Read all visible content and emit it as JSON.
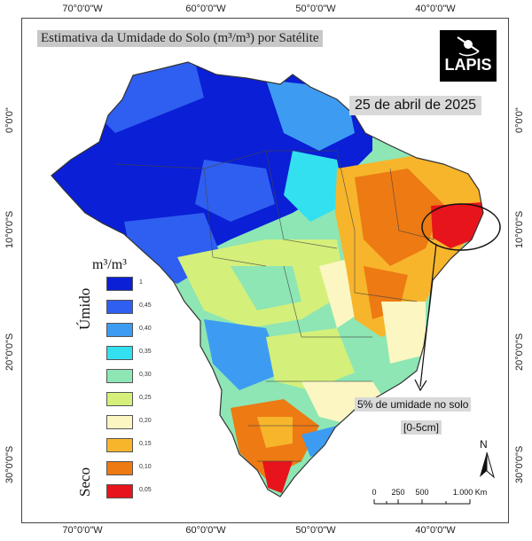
{
  "title": "Estimativa da Umidade do Solo (m³/m³) por Satélite",
  "date": "25 de abril de 2025",
  "logo": "LAPIS",
  "axes": {
    "top": [
      "70°0'0\"W",
      "60°0'0\"W",
      "50°0'0\"W",
      "40°0'0\"W"
    ],
    "bottom": [
      "70°0'0\"W",
      "60°0'0\"W",
      "50°0'0\"W",
      "40°0'0\"W"
    ],
    "left": [
      "0°0'0\"",
      "10°0'0\"S",
      "20°0'0\"S",
      "30°0'0\"S"
    ],
    "right": [
      "0°0'0\"",
      "10°0'0\"S",
      "20°0'0\"S",
      "30°0'0\"S"
    ]
  },
  "legend": {
    "unit": "m³/m³",
    "wet_label": "Úmido",
    "dry_label": "Seco",
    "classes": [
      {
        "label": "1",
        "color": "#0a1fd6"
      },
      {
        "label": "0,45",
        "color": "#2f5ff0"
      },
      {
        "label": "0,40",
        "color": "#3d9cf2"
      },
      {
        "label": "0,35",
        "color": "#33e0ef"
      },
      {
        "label": "0,30",
        "color": "#8de6b4"
      },
      {
        "label": "0,25",
        "color": "#d4f07a"
      },
      {
        "label": "0,20",
        "color": "#fbf6c2"
      },
      {
        "label": "0,15",
        "color": "#f7b52c"
      },
      {
        "label": "0,10",
        "color": "#ed7a12"
      },
      {
        "label": "0,05",
        "color": "#e8141b"
      }
    ]
  },
  "annotation": {
    "line1": "5% de umidade no solo",
    "line2": "[0-5cm]"
  },
  "north_label": "N",
  "scale": {
    "labels": [
      "0",
      "250",
      "500",
      "1.000 Km"
    ]
  }
}
